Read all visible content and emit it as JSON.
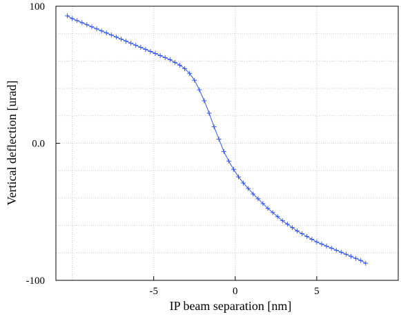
{
  "chart_data": {
    "type": "line",
    "title": "",
    "xlabel": "IP beam separation [nm]",
    "ylabel": "Vertical  deflection [urad]",
    "xlim": [
      -11,
      10
    ],
    "ylim": [
      -100,
      100
    ],
    "x_ticks": [
      {
        "value": -5,
        "label": "-5"
      },
      {
        "value": 0,
        "label": "0"
      },
      {
        "value": 5,
        "label": "5"
      }
    ],
    "y_ticks": [
      {
        "value": 100,
        "label": "100"
      },
      {
        "value": 0,
        "label": "0.0"
      },
      {
        "value": -100,
        "label": "-100"
      }
    ],
    "x_grid": [
      -10,
      -5,
      0,
      5
    ],
    "y_grid": [
      80,
      60,
      40,
      20,
      0,
      -20,
      -40,
      -60,
      -80
    ],
    "grid": true,
    "marker": "+",
    "colors": {
      "line": "#3355ee",
      "marker": "#3355ee"
    },
    "series": [
      {
        "name": "",
        "x": [
          -10.3,
          -10.0,
          -9.7,
          -9.4,
          -9.1,
          -8.8,
          -8.5,
          -8.2,
          -7.9,
          -7.6,
          -7.3,
          -7.0,
          -6.7,
          -6.4,
          -6.1,
          -5.8,
          -5.5,
          -5.2,
          -4.9,
          -4.6,
          -4.3,
          -4.0,
          -3.7,
          -3.4,
          -3.1,
          -2.8,
          -2.5,
          -2.2,
          -1.9,
          -1.6,
          -1.3,
          -1.0,
          -0.7,
          -0.4,
          -0.1,
          0.2,
          0.5,
          0.8,
          1.1,
          1.4,
          1.7,
          2.0,
          2.3,
          2.6,
          2.9,
          3.2,
          3.5,
          3.8,
          4.1,
          4.4,
          4.7,
          5.0,
          5.3,
          5.6,
          5.9,
          6.2,
          6.5,
          6.8,
          7.1,
          7.4,
          7.7,
          8.0
        ],
        "y": [
          93,
          91,
          89.5,
          88,
          86.5,
          85,
          83.5,
          82,
          80.5,
          79,
          77.5,
          76,
          74.5,
          73,
          71.5,
          70,
          68.5,
          67,
          65.5,
          64,
          62.5,
          61,
          59,
          57,
          54.5,
          51,
          46,
          39,
          31,
          22,
          12,
          3,
          -6,
          -13,
          -19,
          -24.5,
          -29,
          -33,
          -37,
          -40.5,
          -44,
          -47.5,
          -50.5,
          -53.5,
          -56.5,
          -59,
          -61.5,
          -64,
          -66,
          -68,
          -70,
          -72,
          -73.5,
          -75,
          -76.5,
          -78,
          -79.5,
          -81,
          -82.5,
          -84,
          -85.5,
          -87.5
        ]
      }
    ]
  }
}
